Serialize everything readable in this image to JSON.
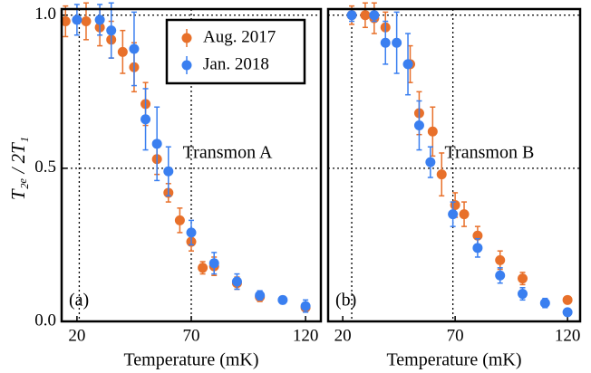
{
  "ylabel": "T₂ₑ / 2T₁",
  "chart_data": [
    {
      "type": "scatter",
      "annotation": "Transmon A",
      "panel_label": "(a)",
      "xlabel": "Temperature (mK)",
      "xlim": [
        13.3,
        126.7
      ],
      "ylim": [
        0,
        1.02
      ],
      "xticks": [
        20,
        70,
        120
      ],
      "yticks": [
        {
          "value": 0,
          "label": "0.0"
        },
        {
          "value": 0.5,
          "label": "0.5"
        },
        {
          "value": 1,
          "label": "1.0"
        }
      ],
      "vlines": [
        21,
        70
      ],
      "hlines": [
        0.5,
        1
      ],
      "legend": "upper right",
      "series": [
        {
          "name": "Aug. 2017",
          "color": "#e8702a",
          "x": [
            15,
            24,
            30,
            35,
            40,
            45,
            50,
            55,
            60,
            65,
            70,
            75,
            80,
            90,
            100,
            120
          ],
          "values": [
            0.98,
            0.98,
            0.96,
            0.92,
            0.88,
            0.83,
            0.71,
            0.53,
            0.42,
            0.33,
            0.26,
            0.175,
            0.18,
            0.125,
            0.08,
            0.045
          ],
          "errors": [
            0.05,
            0.06,
            0.06,
            0.06,
            0.07,
            0.08,
            0.07,
            0.05,
            0.03,
            0.04,
            0.03,
            0.02,
            0.03,
            0.02,
            0.015,
            0.01
          ]
        },
        {
          "name": "Jan. 2018",
          "color": "#3a7ff0",
          "x": [
            20,
            30,
            35,
            45,
            50,
            55,
            60,
            70,
            80,
            90,
            100,
            110,
            120
          ],
          "values": [
            0.985,
            0.985,
            0.95,
            0.89,
            0.66,
            0.58,
            0.49,
            0.29,
            0.19,
            0.13,
            0.085,
            0.07,
            0.05
          ],
          "errors": [
            0.05,
            0.05,
            0.09,
            0.12,
            0.1,
            0.12,
            0.08,
            0.04,
            0.035,
            0.025,
            0.015,
            0.012,
            0.02
          ]
        }
      ]
    },
    {
      "type": "scatter",
      "annotation": "Transmon B",
      "panel_label": "(b)",
      "xlabel": "Temperature (mK)",
      "xlim": [
        13.5,
        125.6
      ],
      "ylim": [
        0,
        1.02
      ],
      "xticks": [
        20,
        70,
        120
      ],
      "vlines": [
        24,
        69
      ],
      "hlines": [
        0.5,
        1
      ],
      "series": [
        {
          "color": "#e8702a",
          "x": [
            24,
            30,
            34,
            39,
            50,
            54,
            60,
            64,
            70,
            74,
            80,
            90,
            100,
            120
          ],
          "values": [
            1.0,
            1.0,
            0.99,
            0.96,
            0.84,
            0.68,
            0.62,
            0.48,
            0.38,
            0.35,
            0.28,
            0.2,
            0.14,
            0.07
          ],
          "errors": [
            0.03,
            0.04,
            0.05,
            0.05,
            0.06,
            0.07,
            0.08,
            0.07,
            0.04,
            0.04,
            0.03,
            0.03,
            0.02,
            0.01
          ]
        },
        {
          "color": "#3a7ff0",
          "x": [
            24,
            34,
            39,
            44,
            49,
            54,
            59,
            69,
            80,
            90,
            100,
            110,
            120
          ],
          "values": [
            1.0,
            1.0,
            0.91,
            0.91,
            0.84,
            0.64,
            0.52,
            0.35,
            0.24,
            0.15,
            0.09,
            0.06,
            0.03
          ],
          "errors": [
            0.02,
            0.02,
            0.07,
            0.1,
            0.1,
            0.08,
            0.05,
            0.04,
            0.03,
            0.025,
            0.02,
            0.015,
            0.01
          ]
        }
      ]
    }
  ]
}
